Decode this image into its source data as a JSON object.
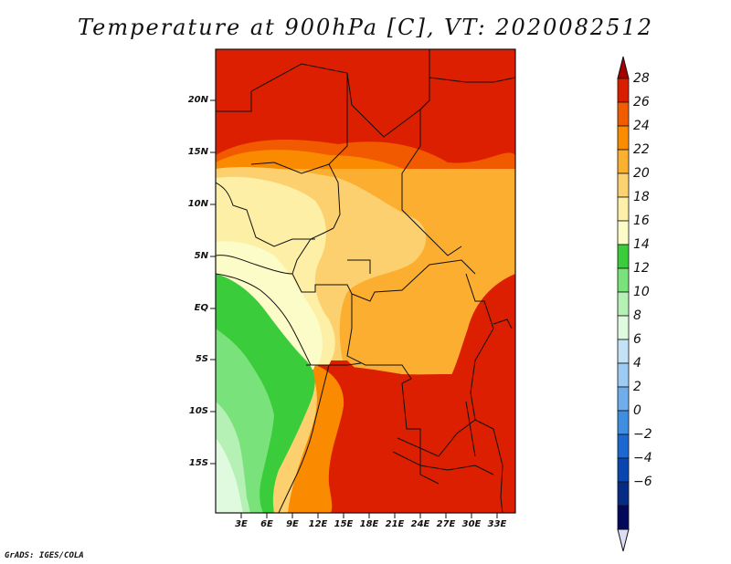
{
  "title": "Temperature at 900hPa [C], VT: 2020082512",
  "credit": "GrADS: IGES/COLA",
  "lat_labels": [
    "20N",
    "15N",
    "10N",
    "5N",
    "EQ",
    "5S",
    "10S",
    "15S"
  ],
  "lon_labels": [
    "3E",
    "6E",
    "9E",
    "12E",
    "15E",
    "18E",
    "21E",
    "24E",
    "27E",
    "30E",
    "33E"
  ],
  "colorbar": {
    "levels": [
      "28",
      "26",
      "24",
      "22",
      "20",
      "18",
      "16",
      "14",
      "12",
      "10",
      "8",
      "6",
      "4",
      "2",
      "0",
      "−2",
      "−4",
      "−6"
    ],
    "colors": [
      "#a50000",
      "#d91e00",
      "#f05c00",
      "#fa8c00",
      "#fbb030",
      "#fcd270",
      "#fdf0a8",
      "#fcfcc8",
      "#3bcc3b",
      "#7ae27a",
      "#b5f0b5",
      "#e0fae0",
      "#c4e2f6",
      "#9ecbf3",
      "#6fadeb",
      "#3f8ee2",
      "#1c68d0",
      "#0a46b0",
      "#062b84",
      "#02085a",
      "#ddddf6"
    ]
  }
}
